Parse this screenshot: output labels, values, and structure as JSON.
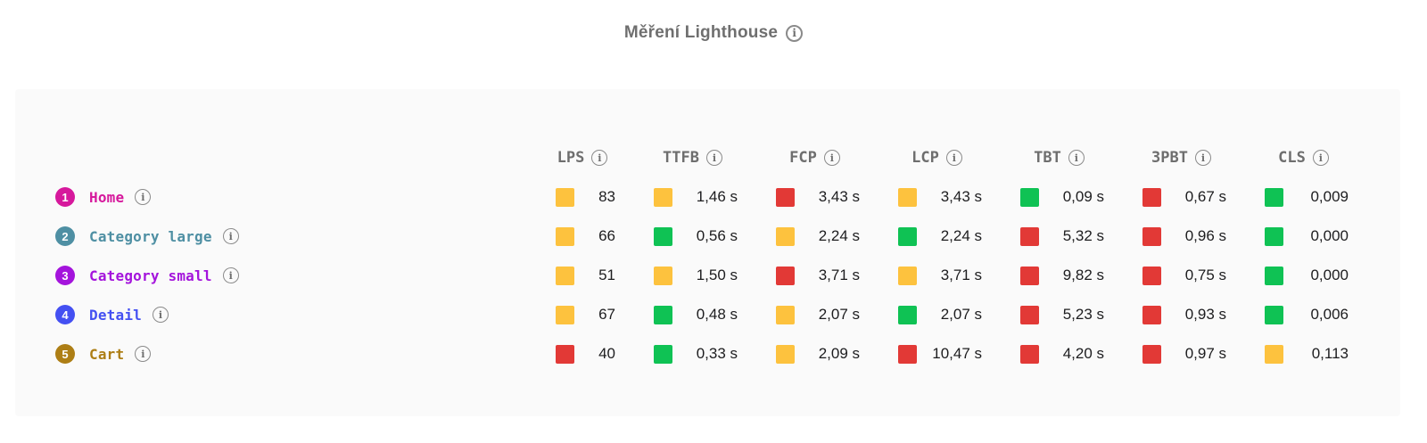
{
  "title": {
    "text": "Měření Lighthouse"
  },
  "status_colors": {
    "green": "#0fc254",
    "orange": "#fdc23e",
    "red": "#e23936"
  },
  "table": {
    "columns": [
      {
        "label": "LPS"
      },
      {
        "label": "TTFB"
      },
      {
        "label": "FCP"
      },
      {
        "label": "LCP"
      },
      {
        "label": "TBT"
      },
      {
        "label": "3PBT"
      },
      {
        "label": "CLS"
      }
    ],
    "rows": [
      {
        "num": "1",
        "label": "Home",
        "color": "#d6189c",
        "cells": [
          {
            "status": "orange",
            "value": "83"
          },
          {
            "status": "orange",
            "value": "1,46 s"
          },
          {
            "status": "red",
            "value": "3,43 s"
          },
          {
            "status": "orange",
            "value": "3,43 s"
          },
          {
            "status": "green",
            "value": "0,09 s"
          },
          {
            "status": "red",
            "value": "0,67 s"
          },
          {
            "status": "green",
            "value": "0,009"
          }
        ]
      },
      {
        "num": "2",
        "label": "Category large",
        "color": "#4e8fa3",
        "cells": [
          {
            "status": "orange",
            "value": "66"
          },
          {
            "status": "green",
            "value": "0,56 s"
          },
          {
            "status": "orange",
            "value": "2,24 s"
          },
          {
            "status": "green",
            "value": "2,24 s"
          },
          {
            "status": "red",
            "value": "5,32 s"
          },
          {
            "status": "red",
            "value": "0,96 s"
          },
          {
            "status": "green",
            "value": "0,000"
          }
        ]
      },
      {
        "num": "3",
        "label": "Category small",
        "color": "#a414dc",
        "cells": [
          {
            "status": "orange",
            "value": "51"
          },
          {
            "status": "orange",
            "value": "1,50 s"
          },
          {
            "status": "red",
            "value": "3,71 s"
          },
          {
            "status": "orange",
            "value": "3,71 s"
          },
          {
            "status": "red",
            "value": "9,82 s"
          },
          {
            "status": "red",
            "value": "0,75 s"
          },
          {
            "status": "green",
            "value": "0,000"
          }
        ]
      },
      {
        "num": "4",
        "label": "Detail",
        "color": "#4450f2",
        "cells": [
          {
            "status": "orange",
            "value": "67"
          },
          {
            "status": "green",
            "value": "0,48 s"
          },
          {
            "status": "orange",
            "value": "2,07 s"
          },
          {
            "status": "green",
            "value": "2,07 s"
          },
          {
            "status": "red",
            "value": "5,23 s"
          },
          {
            "status": "red",
            "value": "0,93 s"
          },
          {
            "status": "green",
            "value": "0,006"
          }
        ]
      },
      {
        "num": "5",
        "label": "Cart",
        "color": "#ad7e15",
        "cells": [
          {
            "status": "red",
            "value": "40"
          },
          {
            "status": "green",
            "value": "0,33 s"
          },
          {
            "status": "orange",
            "value": "2,09 s"
          },
          {
            "status": "red",
            "value": "10,47 s"
          },
          {
            "status": "red",
            "value": "4,20 s"
          },
          {
            "status": "red",
            "value": "0,97 s"
          },
          {
            "status": "orange",
            "value": "0,113"
          }
        ]
      }
    ]
  }
}
